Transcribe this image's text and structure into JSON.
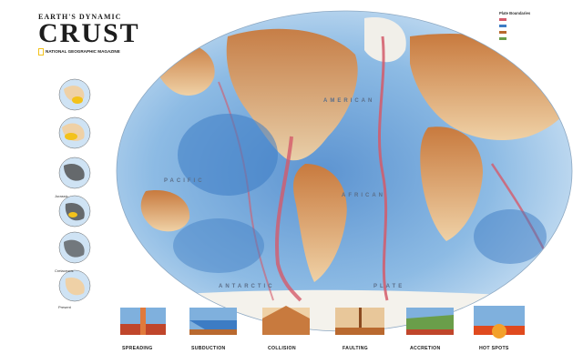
{
  "title": {
    "line1": "EARTH'S DYNAMIC",
    "line2": "CRUST",
    "publisher": "NATIONAL GEOGRAPHIC MAGAZINE"
  },
  "inset_globes": {
    "labels": [
      "Jurassic",
      "Cretaceous",
      "Present"
    ]
  },
  "ocean_labels": [
    "AMERICAN",
    "AFRICAN",
    "PACIFIC",
    "ANTARCTIC",
    "PLATE"
  ],
  "diagrams": {
    "labels": [
      "SPREADING",
      "SUBDUCTION",
      "COLLISION",
      "FAULTING",
      "ACCRETION",
      "HOT SPOTS"
    ]
  },
  "legend": {
    "title": "Plate Boundaries"
  },
  "colors": {
    "ocean_light": "#bcd7ee",
    "ocean_mid": "#7fb0dd",
    "ocean_deep": "#3d7cc4",
    "land_low": "#e8c79a",
    "land_high": "#b9692f",
    "ridge": "#d45a6a",
    "ice": "#f5f3ee"
  }
}
